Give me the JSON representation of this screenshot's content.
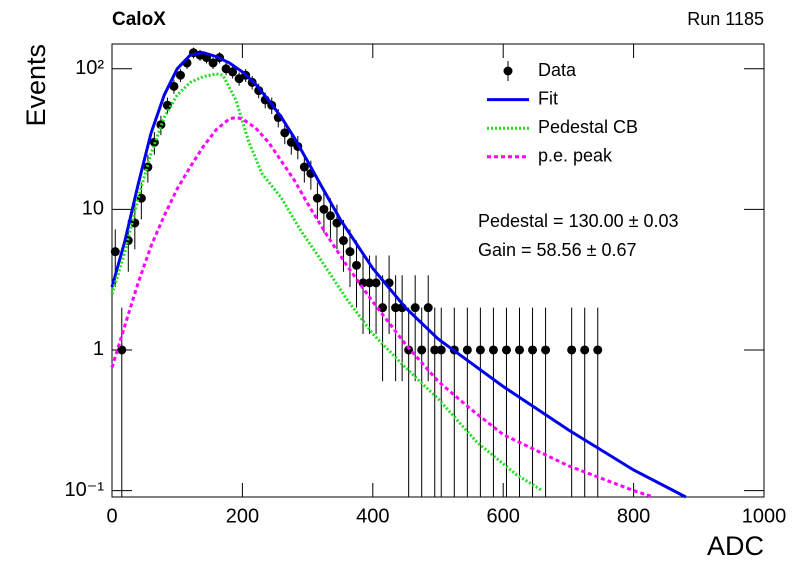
{
  "chart_data": {
    "type": "scatter",
    "title": "CaloX",
    "subtitle": "Run 1185",
    "xlabel": "ADC",
    "ylabel": "Events",
    "log_y": true,
    "xlim": [
      0,
      1000
    ],
    "ylim": [
      0.09,
      150
    ],
    "xticks": [
      0,
      200,
      400,
      600,
      800,
      1000
    ],
    "yticks": [
      {
        "value": 0.1,
        "label": "10⁻¹"
      },
      1,
      10,
      {
        "value": 100,
        "label": "10²"
      }
    ],
    "annotations": [
      "Pedestal = 130.00 ± 0.03",
      "Gain = 58.56 ± 0.67"
    ],
    "series": [
      {
        "name": "Data",
        "type": "scatter",
        "color": "#000000",
        "x": [
          5,
          15,
          25,
          35,
          45,
          55,
          65,
          75,
          85,
          95,
          105,
          115,
          125,
          135,
          145,
          155,
          165,
          175,
          185,
          195,
          205,
          215,
          225,
          235,
          245,
          255,
          265,
          275,
          285,
          295,
          305,
          315,
          325,
          335,
          345,
          355,
          365,
          375,
          385,
          395,
          405,
          415,
          425,
          435,
          445,
          455,
          465,
          475,
          485,
          495,
          505,
          525,
          545,
          565,
          585,
          605,
          625,
          645,
          665,
          705,
          725,
          745
        ],
        "values": [
          5,
          1,
          6,
          8,
          12,
          20,
          30,
          40,
          55,
          75,
          90,
          110,
          130,
          125,
          120,
          110,
          120,
          100,
          95,
          85,
          90,
          80,
          70,
          60,
          55,
          45,
          35,
          30,
          28,
          20,
          18,
          12,
          10,
          9,
          8,
          6,
          5,
          4,
          3,
          3,
          3,
          2,
          3,
          2,
          2,
          1,
          2,
          1,
          2,
          1,
          1,
          1,
          1,
          1,
          1,
          1,
          1,
          1,
          1,
          1,
          1,
          1
        ],
        "errors": [
          2.2,
          1,
          2.4,
          2.8,
          3.5,
          4.5,
          5.5,
          6.3,
          7.4,
          8.7,
          9.5,
          10.5,
          11.4,
          11.2,
          11,
          10.5,
          11,
          10,
          9.7,
          9.2,
          9.5,
          8.9,
          8.4,
          7.7,
          7.4,
          6.7,
          5.9,
          5.5,
          5.3,
          4.5,
          4.2,
          3.5,
          3.2,
          3,
          2.8,
          2.4,
          2.2,
          2,
          1.7,
          1.7,
          1.7,
          1.4,
          1.7,
          1.4,
          1.4,
          1,
          1.4,
          1,
          1.4,
          1,
          1,
          1,
          1,
          1,
          1,
          1,
          1,
          1,
          1,
          1,
          1,
          1
        ]
      },
      {
        "name": "Fit",
        "type": "line",
        "color": "#0000ee",
        "style": "solid",
        "x": [
          0,
          20,
          40,
          60,
          80,
          100,
          120,
          140,
          160,
          180,
          200,
          220,
          240,
          260,
          280,
          300,
          320,
          350,
          400,
          450,
          500,
          600,
          700,
          800,
          880
        ],
        "values": [
          2.8,
          6,
          15,
          35,
          65,
          100,
          125,
          130,
          122,
          110,
          95,
          78,
          60,
          45,
          32,
          22,
          15,
          8.5,
          3.8,
          2,
          1.2,
          0.55,
          0.27,
          0.14,
          0.09
        ]
      },
      {
        "name": "Pedestal CB",
        "type": "line",
        "color": "#22dd22",
        "style": "dotted",
        "x": [
          0,
          20,
          40,
          60,
          80,
          100,
          120,
          140,
          160,
          170,
          190,
          210,
          230,
          260,
          290,
          320,
          360,
          400,
          450,
          500,
          560,
          620,
          660
        ],
        "values": [
          2.5,
          5,
          12,
          25,
          45,
          65,
          80,
          88,
          92,
          90,
          60,
          30,
          18,
          12,
          7,
          4.4,
          2.3,
          1.3,
          0.75,
          0.45,
          0.22,
          0.13,
          0.1
        ]
      },
      {
        "name": "p.e. peak",
        "type": "line",
        "color": "#ff00ff",
        "style": "dashed",
        "x": [
          0,
          20,
          40,
          60,
          80,
          100,
          120,
          140,
          160,
          180,
          190,
          200,
          220,
          240,
          260,
          280,
          300,
          330,
          360,
          400,
          450,
          500,
          550,
          600,
          700,
          800,
          830
        ],
        "values": [
          0.75,
          1.5,
          3,
          5.5,
          9,
          14,
          20,
          28,
          37,
          44,
          45,
          44,
          38,
          30,
          22,
          16,
          11,
          6.5,
          4,
          2.2,
          1.1,
          0.6,
          0.38,
          0.25,
          0.15,
          0.1,
          0.09
        ]
      }
    ]
  }
}
